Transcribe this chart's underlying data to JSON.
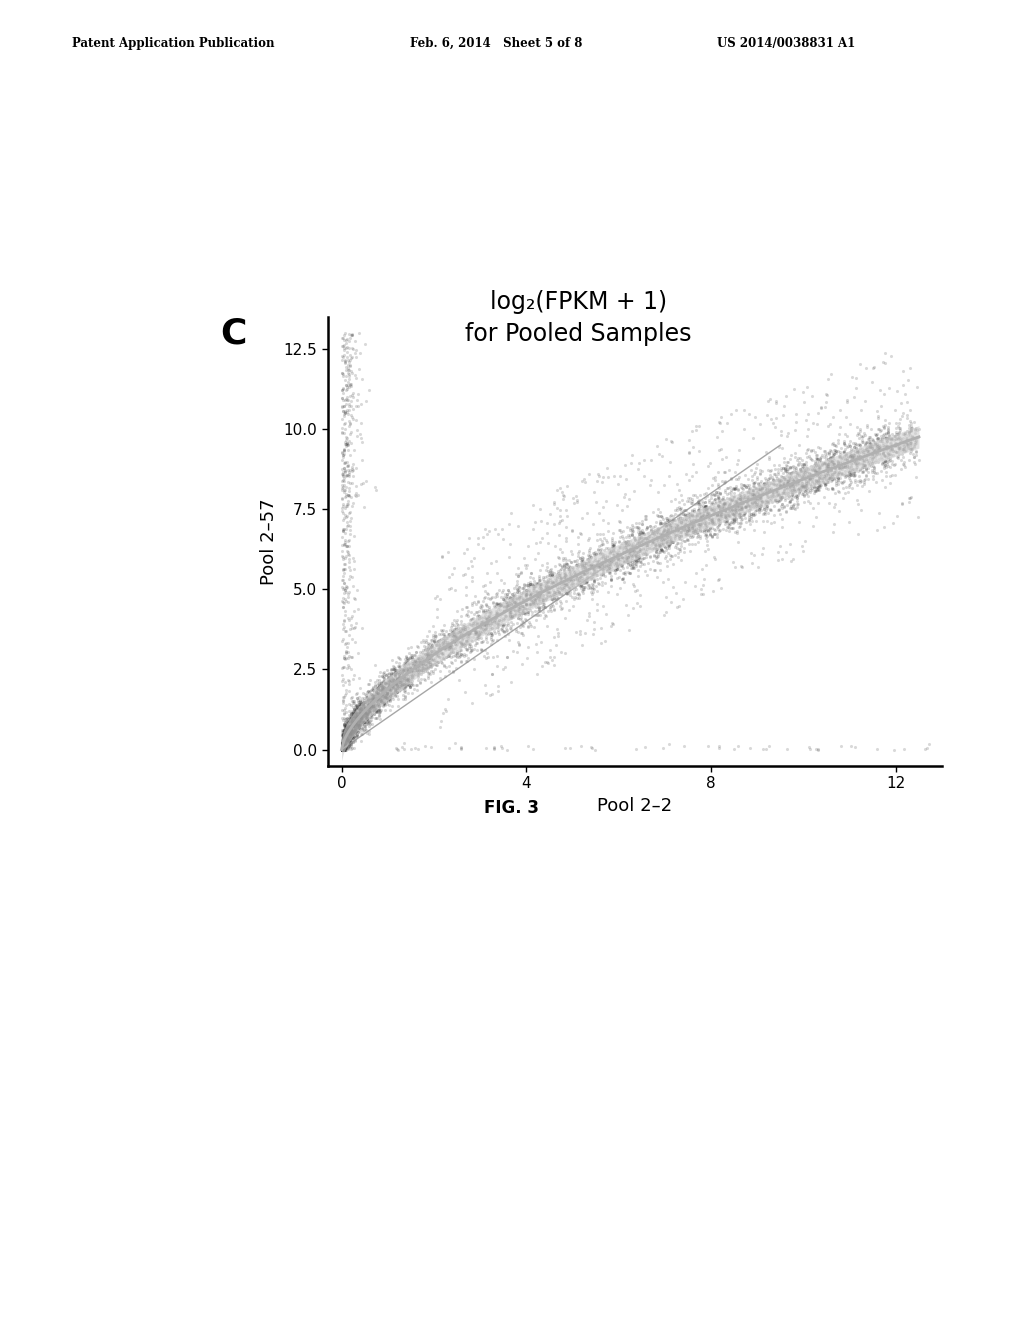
{
  "title_line1": "log₂(FPKM + 1)",
  "title_line2": "for Pooled Samples",
  "xlabel": "Pool 2–2",
  "ylabel": "Pool 2–57",
  "panel_label": "C",
  "fig_label": "FIG. 3",
  "patent_left": "Patent Application Publication",
  "patent_mid": "Feb. 6, 2014   Sheet 5 of 8",
  "patent_right": "US 2014/0038831 A1",
  "xlim": [
    -0.3,
    13.0
  ],
  "ylim": [
    -0.5,
    13.5
  ],
  "xticks": [
    0,
    4,
    8,
    12
  ],
  "yticks": [
    0.0,
    2.5,
    5.0,
    7.5,
    10.0,
    12.5
  ],
  "seed": 42,
  "background_color": "#ffffff",
  "scatter_color": "#303030",
  "scatter_alpha": 0.18,
  "scatter_size": 5,
  "curve_color": "#b0b0b0",
  "curve_lw": 2.0,
  "curve_band_color": "#d0d0d0",
  "curve_band_alpha": 0.6,
  "diag_color": "#909090",
  "diag_lw": 1.0
}
